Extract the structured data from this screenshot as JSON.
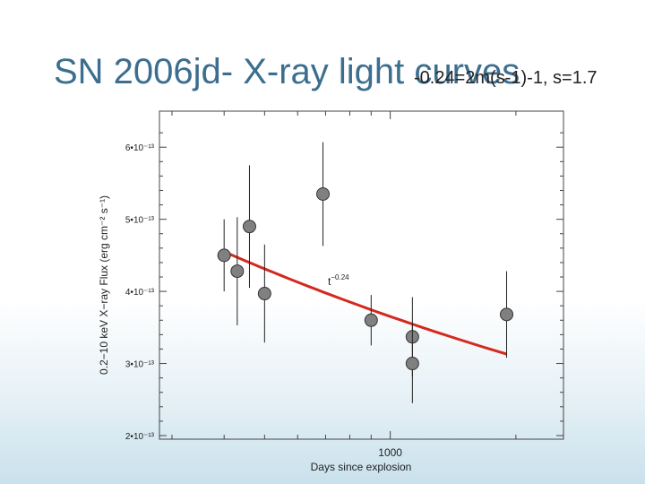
{
  "slide": {
    "title": "SN 2006jd- X-ray light curves",
    "overlay_note": "-0.24=2m(s-1)-1, s=1.7"
  },
  "colors": {
    "title": "#3c6e8f",
    "fit_line": "#d42a1e",
    "marker_fill": "#808080",
    "marker_edge": "#333333"
  },
  "chart_data": {
    "type": "scatter",
    "title": "",
    "xlabel": "Days since explosion",
    "ylabel": "0.2−10 keV X−ray Flux (erg cm⁻² s⁻¹)",
    "x_scale": "log",
    "xlim": [
      280,
      2600
    ],
    "ylim": [
      1.95e-13,
      6.5e-13
    ],
    "x_ticks": [
      {
        "value": 1000,
        "label": "1000"
      }
    ],
    "y_ticks": [
      {
        "value": 2e-13,
        "label": "2•10⁻¹³"
      },
      {
        "value": 3e-13,
        "label": "3•10⁻¹³"
      },
      {
        "value": 4e-13,
        "label": "4•10⁻¹³"
      },
      {
        "value": 5e-13,
        "label": "5•10⁻¹³"
      },
      {
        "value": 6e-13,
        "label": "6•10⁻¹³"
      }
    ],
    "series": [
      {
        "x": [
          400,
          430,
          460,
          500,
          690,
          900,
          1130,
          1130,
          1900
        ],
        "y": [
          4.5e-13,
          4.28e-13,
          4.9e-13,
          3.97e-13,
          5.35e-13,
          3.6e-13,
          3.37e-13,
          3e-13,
          3.68e-13
        ],
        "y_err": [
          5e-14,
          7.5e-14,
          8.5e-14,
          6.8e-14,
          7.2e-14,
          3.5e-14,
          5.5e-14,
          5.5e-14,
          6e-14
        ]
      }
    ],
    "fit": {
      "label": "t",
      "label_exponent": "−0.24",
      "exponent": -0.24,
      "x_range": [
        400,
        1900
      ],
      "y_start": 4.55e-13
    },
    "grid": false
  }
}
